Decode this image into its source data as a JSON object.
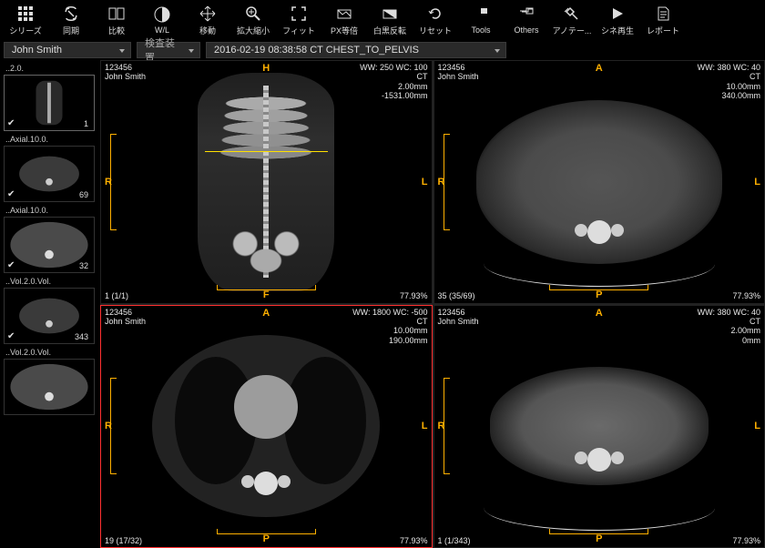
{
  "toolbar": [
    {
      "id": "series",
      "label": "シリーズ"
    },
    {
      "id": "sync",
      "label": "同期"
    },
    {
      "id": "compare",
      "label": "比較"
    },
    {
      "id": "wl",
      "label": "W/L"
    },
    {
      "id": "move",
      "label": "移動"
    },
    {
      "id": "zoom",
      "label": "拡大縮小"
    },
    {
      "id": "fit",
      "label": "フィット"
    },
    {
      "id": "px",
      "label": "PX等倍"
    },
    {
      "id": "invert",
      "label": "白黒反転"
    },
    {
      "id": "reset",
      "label": "リセット"
    },
    {
      "id": "tools",
      "label": "Tools"
    },
    {
      "id": "others",
      "label": "Others"
    },
    {
      "id": "annot",
      "label": "アノテー..."
    },
    {
      "id": "cine",
      "label": "シネ再生"
    },
    {
      "id": "report",
      "label": "レポート"
    }
  ],
  "infobar": {
    "patient": "John Smith",
    "device_label": "検査装置",
    "study": "2016-02-19 08:38:58 CT CHEST_TO_PELVIS"
  },
  "series": [
    {
      "label": "..2.0.",
      "count": "1",
      "checked": true,
      "kind": "scout"
    },
    {
      "label": "..Axial.10.0.",
      "count": "69",
      "checked": true,
      "kind": "axial"
    },
    {
      "label": "..Axial.10.0.",
      "count": "32",
      "checked": true,
      "kind": "axial_lg"
    },
    {
      "label": "..Vol.2.0.Vol.",
      "count": "343",
      "checked": true,
      "kind": "axial"
    },
    {
      "label": "..Vol.2.0.Vol.",
      "count": "",
      "checked": false,
      "kind": "axial_lg"
    }
  ],
  "panes": {
    "p0": {
      "id": "123456",
      "name": "John Smith",
      "top_orient": "H",
      "bot_orient": "F",
      "left_orient": "R",
      "right_orient": "L",
      "ww": "WW: 250 WC: 100",
      "mod": "CT",
      "t1": "2.00mm",
      "t2": "-1531.00mm",
      "bl": "1 (1/1)",
      "br": "77.93%"
    },
    "p1": {
      "id": "123456",
      "name": "John Smith",
      "top_orient": "A",
      "bot_orient": "P",
      "left_orient": "R",
      "right_orient": "L",
      "ww": "WW: 380 WC: 40",
      "mod": "CT",
      "t1": "10.00mm",
      "t2": "340.00mm",
      "bl": "35 (35/69)",
      "br": "77.93%"
    },
    "p2": {
      "id": "123456",
      "name": "John Smith",
      "top_orient": "A",
      "bot_orient": "P",
      "left_orient": "R",
      "right_orient": "L",
      "ww": "WW: 1800 WC: -500",
      "mod": "CT",
      "t1": "10.00mm",
      "t2": "190.00mm",
      "bl": "19 (17/32)",
      "br": "77.93%"
    },
    "p3": {
      "id": "123456",
      "name": "John Smith",
      "top_orient": "A",
      "bot_orient": "P",
      "left_orient": "R",
      "right_orient": "L",
      "ww": "WW: 380 WC: 40",
      "mod": "CT",
      "t1": "2.00mm",
      "t2": "0mm",
      "bl": "1 (1/343)",
      "br": "77.93%"
    }
  },
  "colors": {
    "accent": "#ffb000",
    "active_border": "#ff3030",
    "text": "#e8e8e8",
    "bg": "#000000"
  }
}
